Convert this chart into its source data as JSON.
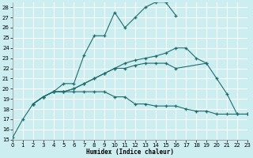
{
  "xlabel": "Humidex (Indice chaleur)",
  "bg_color": "#cceef0",
  "grid_color": "#ffffff",
  "line_color": "#1e6e6e",
  "xlim": [
    0,
    23
  ],
  "ylim": [
    15,
    28.5
  ],
  "xticks": [
    0,
    1,
    2,
    3,
    4,
    5,
    6,
    7,
    8,
    9,
    10,
    11,
    12,
    13,
    14,
    15,
    16,
    17,
    18,
    19,
    20,
    21,
    22,
    23
  ],
  "yticks": [
    15,
    16,
    17,
    18,
    19,
    20,
    21,
    22,
    23,
    24,
    25,
    26,
    27,
    28
  ],
  "curve1_x": [
    0,
    1,
    2,
    3,
    4,
    5,
    6,
    7,
    8,
    9,
    10,
    11,
    12,
    13,
    14,
    15,
    16
  ],
  "curve1_y": [
    15.2,
    17.0,
    18.5,
    19.2,
    19.7,
    20.5,
    20.5,
    23.3,
    25.2,
    25.2,
    27.5,
    26.0,
    27.0,
    28.0,
    28.5,
    28.5,
    27.2
  ],
  "curve2_x": [
    2,
    3,
    4,
    5,
    6,
    7,
    8,
    9,
    10,
    11,
    12,
    13,
    14,
    15,
    16,
    17,
    18,
    19,
    20,
    21,
    22,
    23
  ],
  "curve2_y": [
    18.5,
    19.2,
    19.7,
    19.7,
    19.7,
    19.7,
    19.7,
    19.7,
    19.2,
    19.2,
    18.5,
    18.5,
    18.3,
    18.3,
    18.3,
    18.0,
    17.8,
    17.8,
    17.5,
    17.5,
    17.5,
    17.5
  ],
  "curve3_x": [
    2,
    3,
    4,
    5,
    6,
    7,
    8,
    9,
    10,
    11,
    12,
    13,
    14,
    15,
    16,
    17,
    18,
    19
  ],
  "curve3_y": [
    18.5,
    19.2,
    19.7,
    19.7,
    20.0,
    20.5,
    21.0,
    21.5,
    22.0,
    22.5,
    22.8,
    23.0,
    23.2,
    23.5,
    24.0,
    24.0,
    23.0,
    22.5
  ],
  "curve4_x": [
    2,
    3,
    4,
    5,
    6,
    7,
    8,
    9,
    10,
    11,
    12,
    13,
    14,
    15,
    16,
    19,
    20,
    21,
    22,
    23
  ],
  "curve4_y": [
    18.5,
    19.2,
    19.7,
    19.7,
    20.0,
    20.5,
    21.0,
    21.5,
    22.0,
    22.0,
    22.3,
    22.5,
    22.5,
    22.5,
    22.0,
    22.5,
    21.0,
    19.5,
    17.5,
    17.5
  ]
}
